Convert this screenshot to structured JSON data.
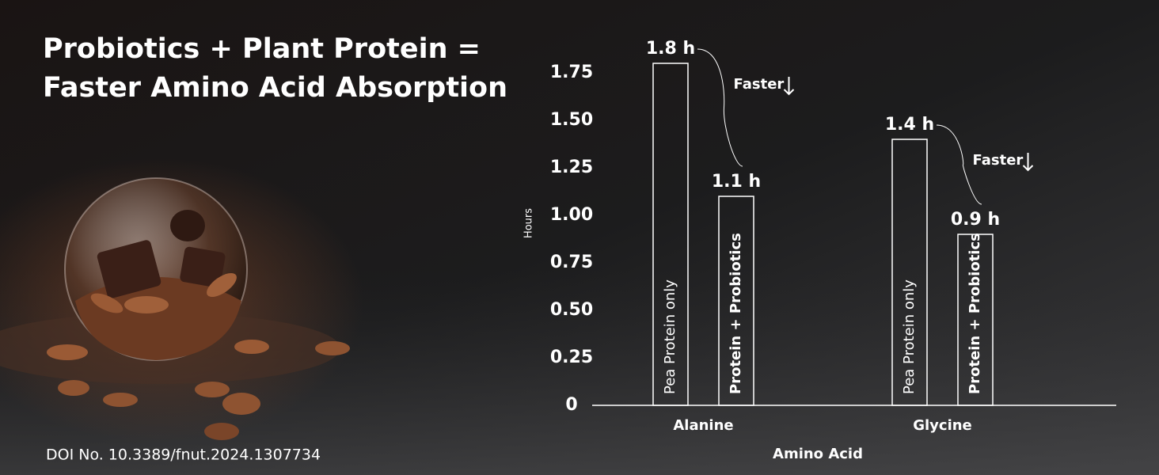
{
  "chart_data": {
    "type": "bar",
    "title": "Probiotics + Plant Protein = Faster Amino Acid Absorption",
    "x_label": "Amino Acid",
    "y_label": "Hours",
    "categories": [
      "Alanine",
      "Glycine"
    ],
    "series": [
      {
        "name": "Pea Protein only",
        "color": "#ffffff",
        "values": [
          1.8,
          1.4
        ],
        "value_labels": [
          "1.8 h",
          "1.4 h"
        ]
      },
      {
        "name": "Protein + Probiotics",
        "color": "#ffffff",
        "values": [
          1.1,
          0.9
        ],
        "value_labels": [
          "1.1 h",
          "0.9 h"
        ]
      }
    ],
    "ylim": [
      0,
      2
    ],
    "yticks": [
      0,
      {
        "value": 0.25,
        "label": "0.25"
      },
      {
        "value": 0.5,
        "label": "0.50"
      },
      {
        "value": 0.75,
        "label": "0.75"
      },
      {
        "value": 1,
        "label": "1.00"
      },
      {
        "value": 1.25,
        "label": "1.25"
      },
      {
        "value": 1.5,
        "label": "1.50"
      },
      {
        "value": 1.75,
        "label": "1.75"
      }
    ],
    "annotations": [
      "Faster",
      "Faster"
    ],
    "source": "DOI No. 10.3389/fnut.2024.1307734"
  }
}
